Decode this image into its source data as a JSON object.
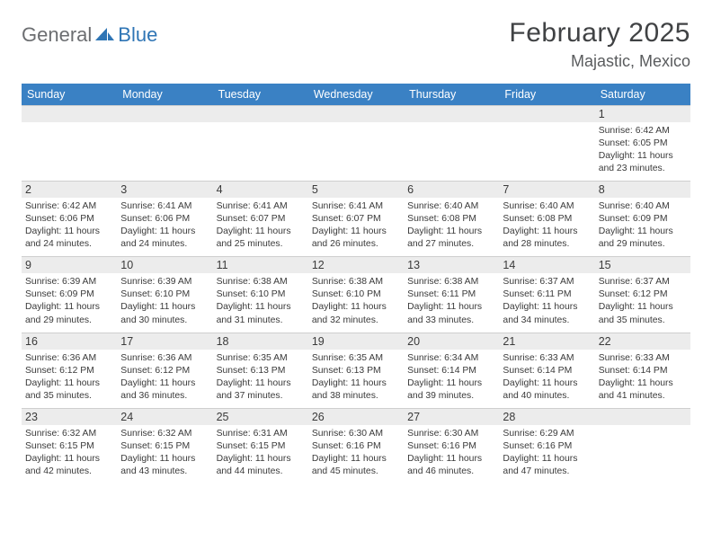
{
  "colors": {
    "header_bg": "#3a81c4",
    "header_text": "#ffffff",
    "daynum_bg": "#ececec",
    "daynum_border": "#cfcfcf",
    "body_text": "#3a3a3a",
    "logo_gray": "#6c6e71",
    "logo_blue": "#2f75b5",
    "title_color": "#404244",
    "subtitle_color": "#5a5c5e",
    "page_bg": "#ffffff"
  },
  "typography": {
    "title_fontsize": 30,
    "subtitle_fontsize": 18,
    "dayname_fontsize": 12.5,
    "daynum_fontsize": 12.5,
    "body_fontsize": 10.4,
    "logo_fontsize": 22
  },
  "logo": {
    "text1": "General",
    "text2": "Blue"
  },
  "title": "February 2025",
  "location": "Majastic, Mexico",
  "daynames": [
    "Sunday",
    "Monday",
    "Tuesday",
    "Wednesday",
    "Thursday",
    "Friday",
    "Saturday"
  ],
  "weeks": [
    [
      {
        "n": "",
        "sr": "",
        "ss": "",
        "dl": ""
      },
      {
        "n": "",
        "sr": "",
        "ss": "",
        "dl": ""
      },
      {
        "n": "",
        "sr": "",
        "ss": "",
        "dl": ""
      },
      {
        "n": "",
        "sr": "",
        "ss": "",
        "dl": ""
      },
      {
        "n": "",
        "sr": "",
        "ss": "",
        "dl": ""
      },
      {
        "n": "",
        "sr": "",
        "ss": "",
        "dl": ""
      },
      {
        "n": "1",
        "sr": "Sunrise: 6:42 AM",
        "ss": "Sunset: 6:05 PM",
        "dl": "Daylight: 11 hours and 23 minutes."
      }
    ],
    [
      {
        "n": "2",
        "sr": "Sunrise: 6:42 AM",
        "ss": "Sunset: 6:06 PM",
        "dl": "Daylight: 11 hours and 24 minutes."
      },
      {
        "n": "3",
        "sr": "Sunrise: 6:41 AM",
        "ss": "Sunset: 6:06 PM",
        "dl": "Daylight: 11 hours and 24 minutes."
      },
      {
        "n": "4",
        "sr": "Sunrise: 6:41 AM",
        "ss": "Sunset: 6:07 PM",
        "dl": "Daylight: 11 hours and 25 minutes."
      },
      {
        "n": "5",
        "sr": "Sunrise: 6:41 AM",
        "ss": "Sunset: 6:07 PM",
        "dl": "Daylight: 11 hours and 26 minutes."
      },
      {
        "n": "6",
        "sr": "Sunrise: 6:40 AM",
        "ss": "Sunset: 6:08 PM",
        "dl": "Daylight: 11 hours and 27 minutes."
      },
      {
        "n": "7",
        "sr": "Sunrise: 6:40 AM",
        "ss": "Sunset: 6:08 PM",
        "dl": "Daylight: 11 hours and 28 minutes."
      },
      {
        "n": "8",
        "sr": "Sunrise: 6:40 AM",
        "ss": "Sunset: 6:09 PM",
        "dl": "Daylight: 11 hours and 29 minutes."
      }
    ],
    [
      {
        "n": "9",
        "sr": "Sunrise: 6:39 AM",
        "ss": "Sunset: 6:09 PM",
        "dl": "Daylight: 11 hours and 29 minutes."
      },
      {
        "n": "10",
        "sr": "Sunrise: 6:39 AM",
        "ss": "Sunset: 6:10 PM",
        "dl": "Daylight: 11 hours and 30 minutes."
      },
      {
        "n": "11",
        "sr": "Sunrise: 6:38 AM",
        "ss": "Sunset: 6:10 PM",
        "dl": "Daylight: 11 hours and 31 minutes."
      },
      {
        "n": "12",
        "sr": "Sunrise: 6:38 AM",
        "ss": "Sunset: 6:10 PM",
        "dl": "Daylight: 11 hours and 32 minutes."
      },
      {
        "n": "13",
        "sr": "Sunrise: 6:38 AM",
        "ss": "Sunset: 6:11 PM",
        "dl": "Daylight: 11 hours and 33 minutes."
      },
      {
        "n": "14",
        "sr": "Sunrise: 6:37 AM",
        "ss": "Sunset: 6:11 PM",
        "dl": "Daylight: 11 hours and 34 minutes."
      },
      {
        "n": "15",
        "sr": "Sunrise: 6:37 AM",
        "ss": "Sunset: 6:12 PM",
        "dl": "Daylight: 11 hours and 35 minutes."
      }
    ],
    [
      {
        "n": "16",
        "sr": "Sunrise: 6:36 AM",
        "ss": "Sunset: 6:12 PM",
        "dl": "Daylight: 11 hours and 35 minutes."
      },
      {
        "n": "17",
        "sr": "Sunrise: 6:36 AM",
        "ss": "Sunset: 6:12 PM",
        "dl": "Daylight: 11 hours and 36 minutes."
      },
      {
        "n": "18",
        "sr": "Sunrise: 6:35 AM",
        "ss": "Sunset: 6:13 PM",
        "dl": "Daylight: 11 hours and 37 minutes."
      },
      {
        "n": "19",
        "sr": "Sunrise: 6:35 AM",
        "ss": "Sunset: 6:13 PM",
        "dl": "Daylight: 11 hours and 38 minutes."
      },
      {
        "n": "20",
        "sr": "Sunrise: 6:34 AM",
        "ss": "Sunset: 6:14 PM",
        "dl": "Daylight: 11 hours and 39 minutes."
      },
      {
        "n": "21",
        "sr": "Sunrise: 6:33 AM",
        "ss": "Sunset: 6:14 PM",
        "dl": "Daylight: 11 hours and 40 minutes."
      },
      {
        "n": "22",
        "sr": "Sunrise: 6:33 AM",
        "ss": "Sunset: 6:14 PM",
        "dl": "Daylight: 11 hours and 41 minutes."
      }
    ],
    [
      {
        "n": "23",
        "sr": "Sunrise: 6:32 AM",
        "ss": "Sunset: 6:15 PM",
        "dl": "Daylight: 11 hours and 42 minutes."
      },
      {
        "n": "24",
        "sr": "Sunrise: 6:32 AM",
        "ss": "Sunset: 6:15 PM",
        "dl": "Daylight: 11 hours and 43 minutes."
      },
      {
        "n": "25",
        "sr": "Sunrise: 6:31 AM",
        "ss": "Sunset: 6:15 PM",
        "dl": "Daylight: 11 hours and 44 minutes."
      },
      {
        "n": "26",
        "sr": "Sunrise: 6:30 AM",
        "ss": "Sunset: 6:16 PM",
        "dl": "Daylight: 11 hours and 45 minutes."
      },
      {
        "n": "27",
        "sr": "Sunrise: 6:30 AM",
        "ss": "Sunset: 6:16 PM",
        "dl": "Daylight: 11 hours and 46 minutes."
      },
      {
        "n": "28",
        "sr": "Sunrise: 6:29 AM",
        "ss": "Sunset: 6:16 PM",
        "dl": "Daylight: 11 hours and 47 minutes."
      },
      {
        "n": "",
        "sr": "",
        "ss": "",
        "dl": ""
      }
    ]
  ]
}
